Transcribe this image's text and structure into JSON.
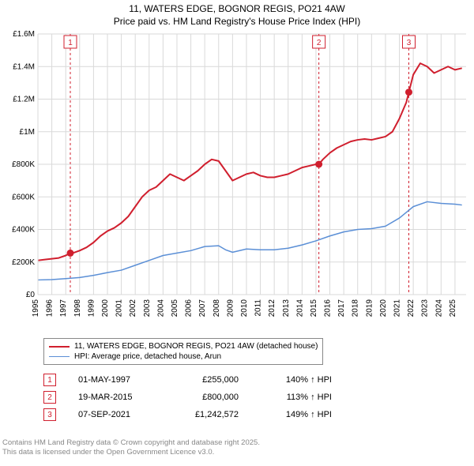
{
  "title_line1": "11, WATERS EDGE, BOGNOR REGIS, PO21 4AW",
  "title_line2": "Price paid vs. HM Land Registry's House Price Index (HPI)",
  "chart": {
    "type": "line",
    "background_color": "#ffffff",
    "grid_color": "#d9d9d9",
    "axis_text_color": "#000000",
    "axis_fontsize": 10,
    "xlim": [
      1995,
      2025.8
    ],
    "ylim": [
      0,
      1600000
    ],
    "ytick_step": 200000,
    "ytick_labels": [
      "£0",
      "£200K",
      "£400K",
      "£600K",
      "£800K",
      "£1M",
      "£1.2M",
      "£1.4M",
      "£1.6M"
    ],
    "xtick_years": [
      1995,
      1996,
      1997,
      1998,
      1999,
      2000,
      2001,
      2002,
      2003,
      2004,
      2005,
      2006,
      2007,
      2008,
      2009,
      2010,
      2011,
      2012,
      2013,
      2014,
      2015,
      2016,
      2017,
      2018,
      2019,
      2020,
      2021,
      2022,
      2023,
      2024,
      2025
    ],
    "series": [
      {
        "name": "price_paid",
        "label": "11, WATERS EDGE, BOGNOR REGIS, PO21 4AW (detached house)",
        "color": "#d01f2e",
        "line_width": 2,
        "points": [
          [
            1995,
            210000
          ],
          [
            1995.5,
            215000
          ],
          [
            1996,
            220000
          ],
          [
            1996.5,
            225000
          ],
          [
            1997,
            240000
          ],
          [
            1997.33,
            255000
          ],
          [
            1997.5,
            255000
          ],
          [
            1998,
            270000
          ],
          [
            1998.5,
            290000
          ],
          [
            1999,
            320000
          ],
          [
            1999.5,
            360000
          ],
          [
            2000,
            390000
          ],
          [
            2000.5,
            410000
          ],
          [
            2001,
            440000
          ],
          [
            2001.5,
            480000
          ],
          [
            2002,
            540000
          ],
          [
            2002.5,
            600000
          ],
          [
            2003,
            640000
          ],
          [
            2003.5,
            660000
          ],
          [
            2004,
            700000
          ],
          [
            2004.5,
            740000
          ],
          [
            2005,
            720000
          ],
          [
            2005.5,
            700000
          ],
          [
            2006,
            730000
          ],
          [
            2006.5,
            760000
          ],
          [
            2007,
            800000
          ],
          [
            2007.5,
            830000
          ],
          [
            2008,
            820000
          ],
          [
            2008.5,
            760000
          ],
          [
            2009,
            700000
          ],
          [
            2009.5,
            720000
          ],
          [
            2010,
            740000
          ],
          [
            2010.5,
            750000
          ],
          [
            2011,
            730000
          ],
          [
            2011.5,
            720000
          ],
          [
            2012,
            720000
          ],
          [
            2012.5,
            730000
          ],
          [
            2013,
            740000
          ],
          [
            2013.5,
            760000
          ],
          [
            2014,
            780000
          ],
          [
            2014.5,
            790000
          ],
          [
            2015,
            800000
          ],
          [
            2015.21,
            800000
          ],
          [
            2015.5,
            830000
          ],
          [
            2016,
            870000
          ],
          [
            2016.5,
            900000
          ],
          [
            2017,
            920000
          ],
          [
            2017.5,
            940000
          ],
          [
            2018,
            950000
          ],
          [
            2018.5,
            955000
          ],
          [
            2019,
            950000
          ],
          [
            2019.5,
            960000
          ],
          [
            2020,
            970000
          ],
          [
            2020.5,
            1000000
          ],
          [
            2021,
            1080000
          ],
          [
            2021.5,
            1180000
          ],
          [
            2021.68,
            1242572
          ],
          [
            2022,
            1350000
          ],
          [
            2022.5,
            1420000
          ],
          [
            2023,
            1400000
          ],
          [
            2023.5,
            1360000
          ],
          [
            2024,
            1380000
          ],
          [
            2024.5,
            1400000
          ],
          [
            2025,
            1380000
          ],
          [
            2025.5,
            1390000
          ]
        ]
      },
      {
        "name": "hpi",
        "label": "HPI: Average price, detached house, Arun",
        "color": "#5b8fd6",
        "line_width": 1.5,
        "points": [
          [
            1995,
            90000
          ],
          [
            1996,
            92000
          ],
          [
            1997,
            98000
          ],
          [
            1998,
            105000
          ],
          [
            1999,
            118000
          ],
          [
            2000,
            135000
          ],
          [
            2001,
            150000
          ],
          [
            2002,
            180000
          ],
          [
            2003,
            210000
          ],
          [
            2004,
            240000
          ],
          [
            2005,
            255000
          ],
          [
            2006,
            270000
          ],
          [
            2007,
            295000
          ],
          [
            2008,
            300000
          ],
          [
            2008.5,
            275000
          ],
          [
            2009,
            260000
          ],
          [
            2010,
            280000
          ],
          [
            2011,
            275000
          ],
          [
            2012,
            275000
          ],
          [
            2013,
            285000
          ],
          [
            2014,
            305000
          ],
          [
            2015,
            330000
          ],
          [
            2016,
            360000
          ],
          [
            2017,
            385000
          ],
          [
            2018,
            400000
          ],
          [
            2019,
            405000
          ],
          [
            2020,
            420000
          ],
          [
            2021,
            470000
          ],
          [
            2022,
            540000
          ],
          [
            2023,
            570000
          ],
          [
            2024,
            560000
          ],
          [
            2025,
            555000
          ],
          [
            2025.5,
            550000
          ]
        ]
      }
    ],
    "markers": [
      {
        "id": "1",
        "year": 1997.33,
        "value": 255000
      },
      {
        "id": "2",
        "year": 2015.21,
        "value": 800000
      },
      {
        "id": "3",
        "year": 2021.68,
        "value": 1242572
      }
    ],
    "marker_box_border": "#d01f2e",
    "marker_box_text": "#d01f2e",
    "marker_vline_color": "#d01f2e",
    "marker_vline_dash": "3,3",
    "marker_dot_color": "#d01f2e",
    "marker_dot_radius": 4.5
  },
  "legend": {
    "border_color": "#888888",
    "items": [
      {
        "color": "#d01f2e",
        "width": 2,
        "label": "11, WATERS EDGE, BOGNOR REGIS, PO21 4AW (detached house)"
      },
      {
        "color": "#5b8fd6",
        "width": 1.5,
        "label": "HPI: Average price, detached house, Arun"
      }
    ]
  },
  "marker_table": [
    {
      "id": "1",
      "date": "01-MAY-1997",
      "price": "£255,000",
      "pct": "140% ↑ HPI"
    },
    {
      "id": "2",
      "date": "19-MAR-2015",
      "price": "£800,000",
      "pct": "113% ↑ HPI"
    },
    {
      "id": "3",
      "date": "07-SEP-2021",
      "price": "£1,242,572",
      "pct": "149% ↑ HPI"
    }
  ],
  "attribution_line1": "Contains HM Land Registry data © Crown copyright and database right 2025.",
  "attribution_line2": "This data is licensed under the Open Government Licence v3.0.",
  "attribution_color": "#888888"
}
